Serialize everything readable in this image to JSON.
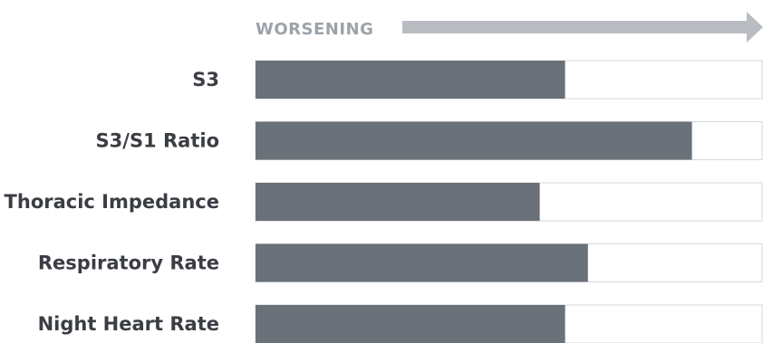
{
  "chart_data": {
    "type": "bar",
    "orientation": "horizontal",
    "header": "WORSENING",
    "categories": [
      "S3",
      "S3/S1 Ratio",
      "Thoracic Impedance",
      "Respiratory Rate",
      "Night Heart Rate"
    ],
    "values": [
      61,
      86,
      56,
      65.5,
      61
    ],
    "xlim": [
      0,
      100
    ],
    "grid": false,
    "legend": "none",
    "colors": {
      "bar": "#6b7178",
      "track_border": "#d4d7da",
      "label": "#3a3d43",
      "header": "#9ba3aa",
      "arrow": "#b9bdc1"
    }
  }
}
